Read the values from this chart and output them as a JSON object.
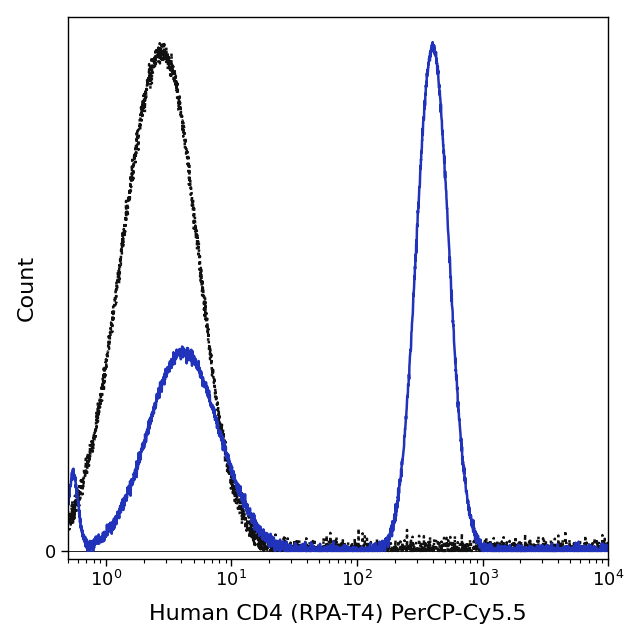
{
  "xlabel": "Human CD4 (RPA-T4) PerCP-Cy5.5",
  "ylabel": "Count",
  "xmin": 0.5,
  "xmax": 10000,
  "background_color": "#ffffff",
  "dotted_color": "#111111",
  "solid_color": "#2233bb",
  "tick_label_fontsize": 13,
  "axis_label_fontsize": 16,
  "figsize": [
    6.41,
    6.41
  ],
  "dpi": 100
}
